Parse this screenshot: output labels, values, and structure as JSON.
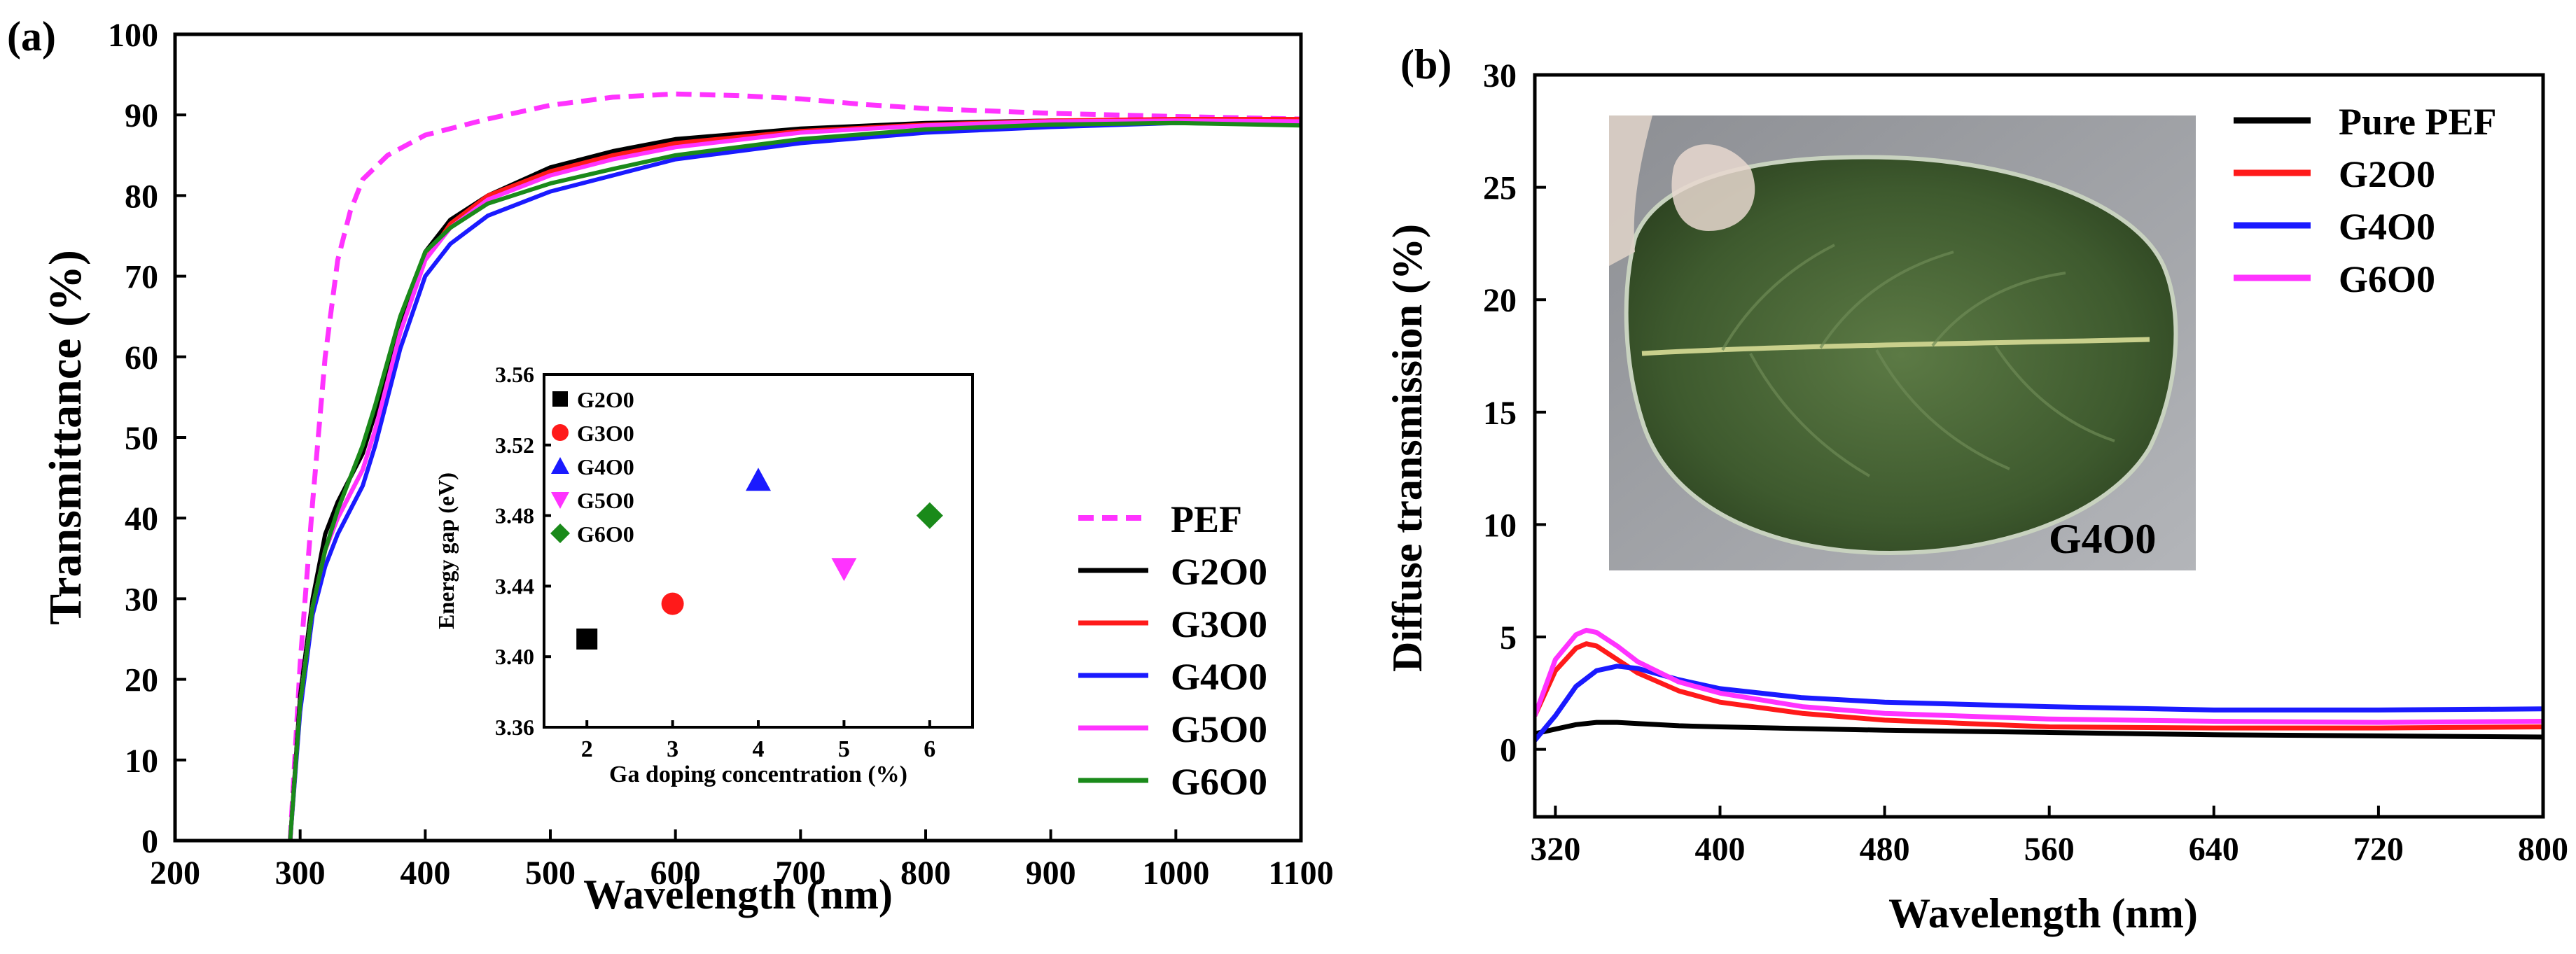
{
  "colors": {
    "PEF": "#ff33ff",
    "G2O0": "#000000",
    "G3O0": "#ff1a1a",
    "G4O0": "#1a1aff",
    "G5O0": "#ff33ff",
    "G6O0": "#1a8a1a",
    "pure_pef_b": "#000000",
    "g2o0_b": "#ff1a1a",
    "g4o0_b": "#1a1aff",
    "g6o0_b": "#ff33ff"
  },
  "chart_data": [
    {
      "panel_label": "(a)",
      "type": "line",
      "xlabel": "Wavelength (nm)",
      "ylabel": "Transmittance (%)",
      "xlim": [
        200,
        1100
      ],
      "ylim": [
        0,
        100
      ],
      "xticks": [
        "200",
        "300",
        "400",
        "500",
        "600",
        "700",
        "800",
        "900",
        "1000",
        "1100"
      ],
      "yticks": [
        "0",
        "10",
        "20",
        "30",
        "40",
        "50",
        "60",
        "70",
        "80",
        "90",
        "100"
      ],
      "legend": [
        "PEF",
        "G2O0",
        "G3O0",
        "G4O0",
        "G5O0",
        "G6O0"
      ],
      "legend_position": "bottom-right",
      "series": [
        {
          "name": "PEF",
          "dashed": true,
          "x": [
            292,
            300,
            310,
            320,
            330,
            340,
            350,
            370,
            400,
            450,
            500,
            550,
            600,
            650,
            700,
            750,
            800,
            900,
            1000,
            1100
          ],
          "y": [
            0,
            22,
            42,
            60,
            72,
            78,
            82,
            85,
            87.5,
            89.5,
            91.2,
            92.2,
            92.6,
            92.4,
            92,
            91.3,
            90.8,
            90.2,
            89.8,
            89.5
          ]
        },
        {
          "name": "G2O0",
          "dashed": false,
          "x": [
            292,
            300,
            310,
            320,
            330,
            340,
            350,
            360,
            380,
            400,
            420,
            450,
            500,
            550,
            600,
            700,
            800,
            900,
            1000,
            1100
          ],
          "y": [
            0,
            18,
            30,
            38,
            42,
            45,
            48,
            53,
            64,
            73,
            77,
            80,
            83.5,
            85.5,
            87,
            88.3,
            89,
            89.3,
            89.3,
            89
          ]
        },
        {
          "name": "G3O0",
          "dashed": false,
          "x": [
            292,
            300,
            310,
            320,
            330,
            340,
            350,
            360,
            380,
            400,
            420,
            450,
            500,
            550,
            600,
            700,
            800,
            900,
            1000,
            1100
          ],
          "y": [
            0,
            17,
            29,
            36,
            40,
            43,
            46,
            51,
            63,
            72,
            76.5,
            80,
            83,
            85,
            86.5,
            88,
            88.8,
            89.3,
            89.5,
            89.5
          ]
        },
        {
          "name": "G4O0",
          "dashed": false,
          "x": [
            292,
            300,
            310,
            320,
            330,
            340,
            350,
            360,
            380,
            400,
            420,
            450,
            500,
            550,
            600,
            700,
            800,
            900,
            1000,
            1100
          ],
          "y": [
            0,
            16,
            28,
            34,
            38,
            41,
            44,
            49,
            61,
            70,
            74,
            77.5,
            80.5,
            82.5,
            84.5,
            86.5,
            87.8,
            88.5,
            89,
            88.8
          ]
        },
        {
          "name": "G5O0",
          "dashed": false,
          "x": [
            292,
            300,
            310,
            320,
            330,
            340,
            350,
            360,
            380,
            400,
            420,
            450,
            500,
            550,
            600,
            700,
            800,
            900,
            1000,
            1100
          ],
          "y": [
            0,
            17,
            29,
            36,
            40,
            43,
            46,
            51,
            63,
            72,
            76,
            79.5,
            82.5,
            84.5,
            86,
            87.8,
            88.7,
            89.2,
            89.3,
            89.2
          ]
        },
        {
          "name": "G6O0",
          "dashed": false,
          "x": [
            292,
            300,
            310,
            320,
            330,
            340,
            350,
            360,
            380,
            400,
            420,
            450,
            500,
            550,
            600,
            700,
            800,
            900,
            1000,
            1100
          ],
          "y": [
            0,
            17,
            29,
            36,
            41,
            45,
            49,
            54,
            65,
            73,
            76,
            79,
            81.5,
            83.3,
            85,
            87,
            88.2,
            88.8,
            89,
            88.7
          ]
        }
      ]
    },
    {
      "panel_label": "",
      "type": "scatter",
      "xlabel": "Ga doping concentration (%)",
      "ylabel": "Energy gap (eV)",
      "xlim": [
        1.5,
        6.5
      ],
      "ylim": [
        3.36,
        3.56
      ],
      "xticks": [
        "2",
        "3",
        "4",
        "5",
        "6"
      ],
      "yticks": [
        "3.36",
        "3.40",
        "3.44",
        "3.48",
        "3.52",
        "3.56"
      ],
      "legend": [
        "G2O0",
        "G3O0",
        "G4O0",
        "G5O0",
        "G6O0"
      ],
      "legend_position": "top-left",
      "points": [
        {
          "name": "G2O0",
          "x": 2,
          "y": 3.41,
          "marker": "square"
        },
        {
          "name": "G3O0",
          "x": 3,
          "y": 3.43,
          "marker": "circle"
        },
        {
          "name": "G4O0",
          "x": 4,
          "y": 3.5,
          "marker": "triangle-up"
        },
        {
          "name": "G5O0",
          "x": 5,
          "y": 3.45,
          "marker": "triangle-down"
        },
        {
          "name": "G6O0",
          "x": 6,
          "y": 3.48,
          "marker": "diamond"
        }
      ]
    },
    {
      "panel_label": "(b)",
      "type": "line",
      "xlabel": "Wavelength (nm)",
      "ylabel": "Diffuse transmission (%)",
      "xlim": [
        310,
        800
      ],
      "ylim": [
        -3,
        30
      ],
      "xticks": [
        "320",
        "400",
        "480",
        "560",
        "640",
        "720",
        "800"
      ],
      "yticks": [
        "0",
        "5",
        "10",
        "15",
        "20",
        "25",
        "30"
      ],
      "legend": [
        "Pure PEF",
        "G2O0",
        "G4O0",
        "G6O0"
      ],
      "legend_position": "top-right",
      "photo_label": "G4O0",
      "series": [
        {
          "name": "Pure PEF",
          "x": [
            310,
            320,
            330,
            340,
            350,
            360,
            380,
            400,
            480,
            560,
            640,
            720,
            800
          ],
          "y": [
            0.7,
            0.9,
            1.1,
            1.2,
            1.2,
            1.15,
            1.05,
            1.0,
            0.85,
            0.75,
            0.65,
            0.6,
            0.55
          ]
        },
        {
          "name": "G2O0",
          "x": [
            310,
            320,
            330,
            335,
            340,
            350,
            360,
            380,
            400,
            440,
            480,
            560,
            640,
            720,
            800
          ],
          "y": [
            1.5,
            3.5,
            4.5,
            4.7,
            4.6,
            4.0,
            3.4,
            2.6,
            2.1,
            1.6,
            1.3,
            1.0,
            0.95,
            0.95,
            1.0
          ]
        },
        {
          "name": "G4O0",
          "x": [
            310,
            320,
            330,
            340,
            350,
            360,
            380,
            400,
            440,
            480,
            560,
            640,
            720,
            800
          ],
          "y": [
            0.4,
            1.5,
            2.8,
            3.5,
            3.7,
            3.6,
            3.1,
            2.7,
            2.3,
            2.1,
            1.9,
            1.75,
            1.75,
            1.8
          ]
        },
        {
          "name": "G6O0",
          "x": [
            310,
            320,
            330,
            335,
            340,
            350,
            360,
            380,
            400,
            440,
            480,
            560,
            640,
            720,
            800
          ],
          "y": [
            1.5,
            4.0,
            5.1,
            5.3,
            5.2,
            4.6,
            3.9,
            3.0,
            2.5,
            1.9,
            1.6,
            1.35,
            1.25,
            1.2,
            1.25
          ]
        }
      ]
    }
  ]
}
